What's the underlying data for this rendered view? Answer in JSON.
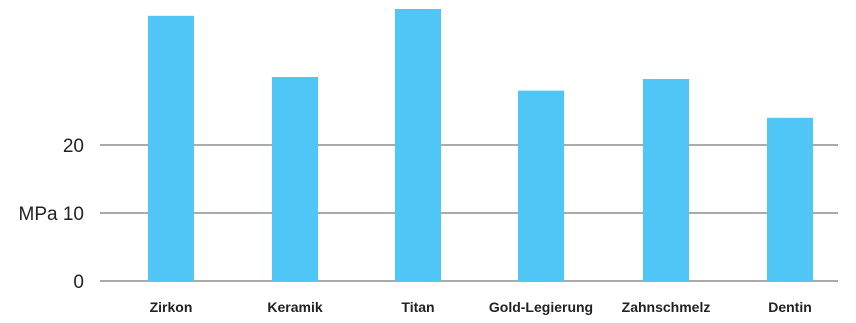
{
  "chart_data": {
    "type": "bar",
    "categories": [
      "Zirkon",
      "Keramik",
      "Titan",
      "Gold-Legierung",
      "Zahnschmelz",
      "Dentin"
    ],
    "values": [
      39,
      30,
      40,
      28,
      29.7,
      24
    ],
    "ylim": [
      0,
      40
    ],
    "yticks": [
      {
        "value": 0,
        "label": "0"
      },
      {
        "value": 10,
        "label": "MPa 10"
      },
      {
        "value": 20,
        "label": "20"
      }
    ],
    "grid": true,
    "colors": {
      "bar": "#4fc6f6",
      "grid": "#555555"
    }
  }
}
